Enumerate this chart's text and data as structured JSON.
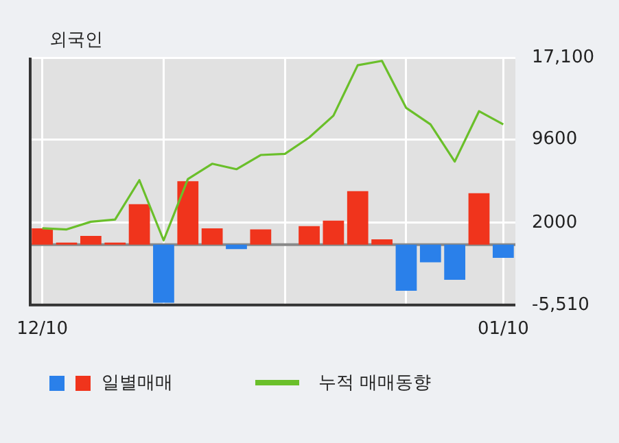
{
  "chart_data": {
    "type": "bar",
    "title": "외국인",
    "categories": [
      "12/10",
      null,
      null,
      null,
      null,
      null,
      null,
      null,
      null,
      null,
      null,
      null,
      null,
      null,
      null,
      null,
      null,
      null,
      null,
      "01/10"
    ],
    "series": [
      {
        "name": "일별매매",
        "colors": [
          "#f0341c",
          "#f0341c",
          "#f0341c",
          "#f0341c",
          "#f0341c",
          "#2a80ea",
          "#f0341c",
          "#f0341c",
          "#2a80ea",
          "#f0341c",
          "#f0341c",
          "#f0341c",
          "#f0341c",
          "#f0341c",
          "#f0341c",
          "#2a80ea",
          "#2a80ea",
          "#2a80ea",
          "#f0341c",
          "#2a80ea"
        ],
        "values": [
          1500,
          200,
          800,
          200,
          3700,
          -5300,
          5800,
          1500,
          -400,
          1400,
          0,
          1700,
          2200,
          4900,
          500,
          -4200,
          -1600,
          -3200,
          4700,
          -1200
        ]
      },
      {
        "name": "누적 매매동향",
        "type": "line",
        "color": "#6abf2a",
        "values": [
          1500,
          1400,
          2100,
          2300,
          5900,
          400,
          6000,
          7400,
          6900,
          8200,
          8300,
          9800,
          11800,
          16400,
          16800,
          12500,
          11000,
          7600,
          12200,
          11000
        ]
      }
    ],
    "ylim": [
      -5510,
      17100
    ],
    "yticks": [
      {
        "value": -5510,
        "label": "-5,510"
      },
      2000,
      9600,
      {
        "value": 17100,
        "label": "17,100"
      }
    ],
    "grid": true,
    "legend": "bottom",
    "marker": "none"
  }
}
